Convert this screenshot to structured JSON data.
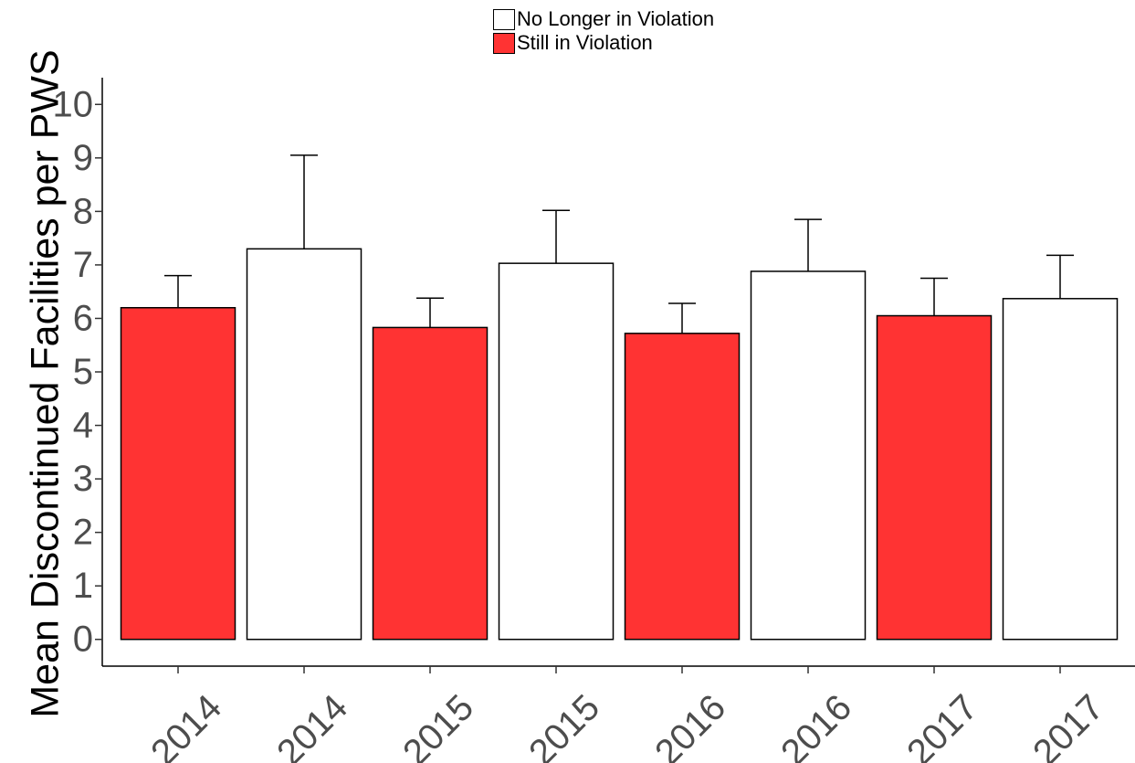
{
  "chart_data": {
    "type": "bar",
    "categories": [
      "2014",
      "2014",
      "2015",
      "2015",
      "2016",
      "2016",
      "2017",
      "2017"
    ],
    "groups": [
      "Still in Violation",
      "No Longer in Violation",
      "Still in Violation",
      "No Longer in Violation",
      "Still in Violation",
      "No Longer in Violation",
      "Still in Violation",
      "No Longer in Violation"
    ],
    "values": [
      6.2,
      7.3,
      5.83,
      7.03,
      5.72,
      6.88,
      6.05,
      6.37
    ],
    "error_upper": [
      6.8,
      9.05,
      6.38,
      8.02,
      6.28,
      7.85,
      6.75,
      7.18
    ],
    "title": "",
    "xlabel": "",
    "ylabel": "Mean Discontinued Facilities per PWS",
    "ylim": [
      -0.5,
      10.5
    ],
    "yticks": [
      "0",
      "1",
      "2",
      "3",
      "4",
      "5",
      "6",
      "7",
      "8",
      "9",
      "10"
    ],
    "legend": [
      {
        "name": "No Longer in Violation",
        "color": "#ffffff"
      },
      {
        "name": "Still in Violation",
        "color": "#ff3333"
      }
    ],
    "legend_position": "top",
    "grid": false,
    "colors": {
      "Still in Violation": "#ff3333",
      "No Longer in Violation": "#ffffff"
    }
  }
}
